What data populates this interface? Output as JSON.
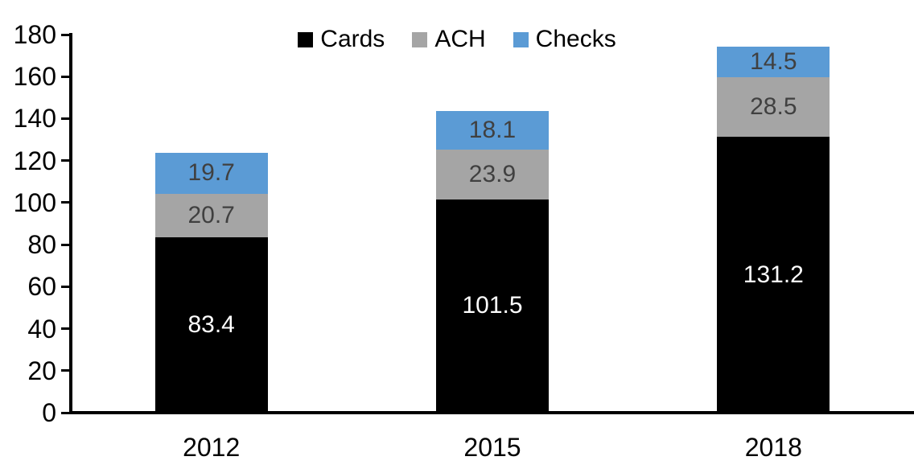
{
  "chart_data": {
    "type": "bar",
    "stacked": true,
    "title": "",
    "xlabel": "",
    "ylabel": "",
    "categories": [
      "2012",
      "2015",
      "2018"
    ],
    "series": [
      {
        "name": "Cards",
        "color": "#000000",
        "label_color": "#ffffff",
        "values": [
          83.4,
          101.5,
          131.2
        ]
      },
      {
        "name": "ACH",
        "color": "#a5a5a5",
        "label_color": "#404040",
        "values": [
          20.7,
          23.9,
          28.5
        ]
      },
      {
        "name": "Checks",
        "color": "#5b9bd5",
        "label_color": "#404040",
        "values": [
          19.7,
          18.1,
          14.5
        ]
      }
    ],
    "ylim": [
      0,
      180
    ],
    "ytick_step": 20,
    "ytick_labels": [
      "0",
      "20",
      "40",
      "60",
      "80",
      "100",
      "120",
      "140",
      "160",
      "180"
    ],
    "grid": false,
    "legend_position": "top",
    "axis_color": "#000000",
    "text_color": "#000000",
    "value_label_decimals": 1
  }
}
